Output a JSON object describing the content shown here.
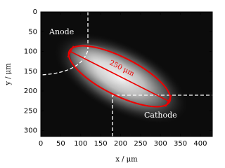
{
  "chart_data": {
    "type": "image",
    "xlabel": "x / μm",
    "ylabel": "y / μm",
    "xlim": [
      0,
      430
    ],
    "ylim": [
      315,
      0
    ],
    "xticks": [
      0,
      50,
      100,
      150,
      200,
      250,
      300,
      350,
      400
    ],
    "yticks": [
      0,
      50,
      100,
      150,
      200,
      250,
      300
    ],
    "annotations": {
      "anode": "Anode",
      "cathode": "Cathode",
      "length": "250 μm"
    },
    "colormap": "gray"
  }
}
